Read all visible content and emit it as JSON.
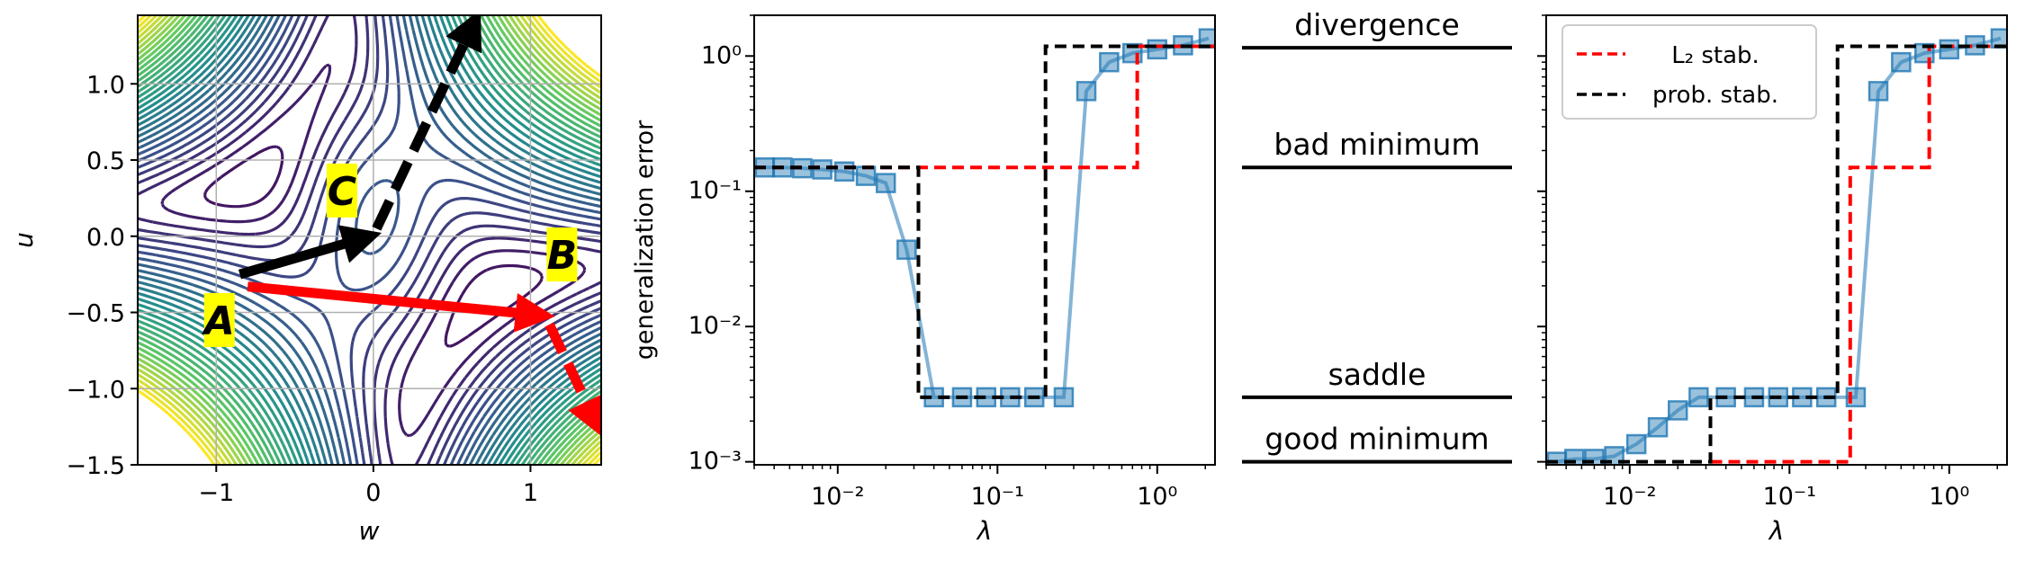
{
  "colors": {
    "blue": "#1f77b4",
    "red": "#ff0000",
    "black": "#000000",
    "yellow": "#ffff00",
    "contour_dark": "#440154",
    "contour_mid": "#21918c",
    "contour_light": "#fde725"
  },
  "chart_data": [
    {
      "type": "contour",
      "xlabel": "w",
      "ylabel": "u",
      "xlim": [
        -1.5,
        1.45
      ],
      "ylim": [
        -1.5,
        1.45
      ],
      "xticks": [
        -1,
        0,
        1
      ],
      "xtick_labels": [
        "−1",
        "0",
        "1"
      ],
      "yticks": [
        1.0,
        0.5,
        0.0,
        -0.5,
        -1.0,
        -1.5
      ],
      "ytick_labels": [
        "1.0",
        "0.5",
        "0.0",
        "−0.5",
        "−1.0",
        "−1.5"
      ],
      "grid": true,
      "colormap": "viridis",
      "points": [
        {
          "label": "A",
          "w": -0.98,
          "u": -0.55
        },
        {
          "label": "B",
          "w": 1.2,
          "u": -0.12
        },
        {
          "label": "C",
          "w": -0.2,
          "u": 0.3
        }
      ],
      "arrows": [
        {
          "color": "black",
          "style": "solid",
          "from": [
            -0.85,
            -0.25
          ],
          "to": [
            -0.02,
            0.0
          ]
        },
        {
          "color": "black",
          "style": "dashed",
          "from": [
            0.02,
            0.05
          ],
          "to": [
            0.65,
            1.42
          ]
        },
        {
          "color": "red",
          "style": "solid",
          "from": [
            -0.8,
            -0.33
          ],
          "to": [
            1.08,
            -0.52
          ]
        },
        {
          "color": "red",
          "style": "dashed",
          "from": [
            1.12,
            -0.58
          ],
          "to": [
            1.43,
            -1.25
          ]
        }
      ]
    },
    {
      "type": "line",
      "xscale": "log",
      "yscale": "log",
      "ylabel": "generalization error",
      "xlabel": "λ",
      "xlim": [
        0.003,
        2.3
      ],
      "ylim": [
        0.00095,
        2.0
      ],
      "xtick_labels": [
        "10⁻²",
        "10⁻¹",
        "10⁰"
      ],
      "ytick_labels": [
        "10⁰",
        "10⁻¹",
        "10⁻²",
        "10⁻³"
      ],
      "series": [
        {
          "kind": "data",
          "marker": "square",
          "x": [
            0.0035,
            0.0045,
            0.006,
            0.008,
            0.011,
            0.015,
            0.02,
            0.027,
            0.04,
            0.06,
            0.085,
            0.12,
            0.17,
            0.26,
            0.36,
            0.5,
            0.7,
            1.0,
            1.45,
            2.1
          ],
          "y": [
            0.15,
            0.15,
            0.148,
            0.145,
            0.14,
            0.13,
            0.115,
            0.037,
            0.003,
            0.003,
            0.003,
            0.003,
            0.003,
            0.003,
            0.55,
            0.9,
            1.05,
            1.12,
            1.2,
            1.35
          ]
        },
        {
          "kind": "red-dashed",
          "x": [
            0.003,
            0.75,
            0.75,
            2.3
          ],
          "y": [
            0.15,
            0.15,
            1.18,
            1.18
          ]
        },
        {
          "kind": "black-dashed",
          "x": [
            0.003,
            0.032,
            0.032,
            0.2,
            0.2,
            2.3
          ],
          "y": [
            0.15,
            0.15,
            0.003,
            0.003,
            1.18,
            1.18
          ]
        }
      ]
    },
    {
      "type": "labels",
      "levels": [
        {
          "label": "divergence",
          "y": 1.15
        },
        {
          "label": "bad minimum",
          "y": 0.15
        },
        {
          "label": "saddle",
          "y": 0.003
        },
        {
          "label": "good minimum",
          "y": 0.001
        }
      ]
    },
    {
      "type": "line",
      "xscale": "log",
      "yscale": "log",
      "xlabel": "λ",
      "xlim": [
        0.003,
        2.3
      ],
      "ylim": [
        0.00095,
        2.0
      ],
      "xtick_labels": [
        "10⁻²",
        "10⁻¹",
        "10⁰"
      ],
      "legend": {
        "placement": "top-left",
        "entries": [
          "L₂ stab.",
          "prob. stab."
        ]
      },
      "series": [
        {
          "kind": "data",
          "marker": "square",
          "x": [
            0.0035,
            0.0045,
            0.006,
            0.008,
            0.011,
            0.015,
            0.02,
            0.027,
            0.04,
            0.06,
            0.085,
            0.12,
            0.17,
            0.26,
            0.36,
            0.5,
            0.7,
            1.0,
            1.45,
            2.1
          ],
          "y": [
            0.001,
            0.00105,
            0.00105,
            0.0011,
            0.00135,
            0.0018,
            0.0024,
            0.003,
            0.003,
            0.003,
            0.003,
            0.003,
            0.003,
            0.003,
            0.55,
            0.9,
            1.05,
            1.12,
            1.2,
            1.35
          ]
        },
        {
          "kind": "red-dashed",
          "x": [
            0.032,
            0.24,
            0.24,
            0.75,
            0.75,
            2.3
          ],
          "y": [
            0.001,
            0.001,
            0.15,
            0.15,
            1.18,
            1.18
          ]
        },
        {
          "kind": "black-dashed",
          "x": [
            0.003,
            0.032,
            0.032,
            0.2,
            0.2,
            2.3
          ],
          "y": [
            0.001,
            0.001,
            0.003,
            0.003,
            1.18,
            1.18
          ]
        }
      ]
    }
  ]
}
